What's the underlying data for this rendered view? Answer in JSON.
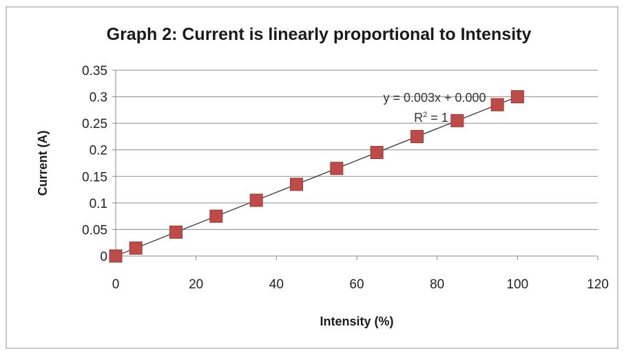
{
  "chart_data": {
    "type": "scatter",
    "title": "Graph 2: Current is linearly proportional to Intensity",
    "xlabel": "Intensity (%)",
    "ylabel": "Current (A)",
    "xlim": [
      0,
      120
    ],
    "ylim": [
      0,
      0.35
    ],
    "x_ticks": [
      "0",
      "20",
      "40",
      "60",
      "80",
      "100",
      "120"
    ],
    "y_ticks": [
      "0",
      "0.05",
      "0.1",
      "0.15",
      "0.2",
      "0.25",
      "0.3",
      "0.35"
    ],
    "grid": "horizontal",
    "legend": "none",
    "series": [
      {
        "marker_color": "#be4b48",
        "x": [
          0,
          5,
          15,
          25,
          35,
          45,
          55,
          65,
          75,
          85,
          95,
          100
        ],
        "y": [
          0,
          0.015,
          0.045,
          0.075,
          0.105,
          0.135,
          0.165,
          0.195,
          0.225,
          0.255,
          0.285,
          0.3
        ]
      }
    ],
    "trendline": {
      "slope": 0.003,
      "intercept": 0,
      "equation": "y = 0.003x + 0.000",
      "r2_label": "R",
      "r2_sup": "2",
      "r2_value": " = 1"
    }
  }
}
